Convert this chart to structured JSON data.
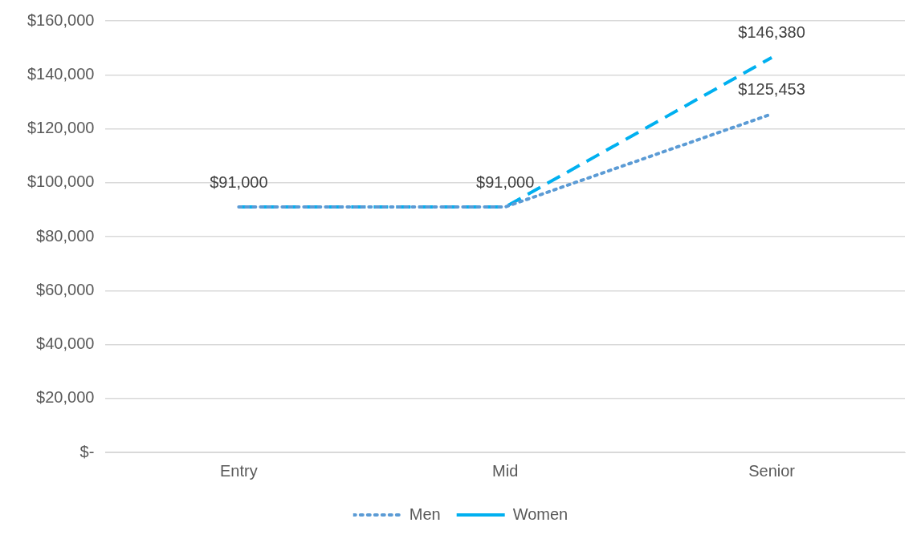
{
  "chart_data": {
    "type": "line",
    "categories": [
      "Entry",
      "Mid",
      "Senior"
    ],
    "series": [
      {
        "name": "Men",
        "color": "#5b9bd5",
        "line_style": "dotted",
        "values": [
          91000,
          91000,
          125453
        ],
        "value_labels": [
          null,
          null,
          "$125,453"
        ]
      },
      {
        "name": "Women",
        "color": "#00b0f0",
        "line_style": "dashed",
        "values": [
          91000,
          91000,
          146380
        ],
        "value_labels": [
          "$91,000",
          "$91,000",
          "$146,380"
        ]
      }
    ],
    "ylim": [
      0,
      160000
    ],
    "yticks": [
      {
        "value": 0,
        "label": "$-"
      },
      {
        "value": 20000,
        "label": "$20,000"
      },
      {
        "value": 40000,
        "label": "$40,000"
      },
      {
        "value": 60000,
        "label": "$60,000"
      },
      {
        "value": 80000,
        "label": "$80,000"
      },
      {
        "value": 100000,
        "label": "$100,000"
      },
      {
        "value": 120000,
        "label": "$120,000"
      },
      {
        "value": 140000,
        "label": "$140,000"
      },
      {
        "value": 160000,
        "label": "$160,000"
      }
    ],
    "grid": "y",
    "legend": "bottom",
    "marker": "none"
  }
}
